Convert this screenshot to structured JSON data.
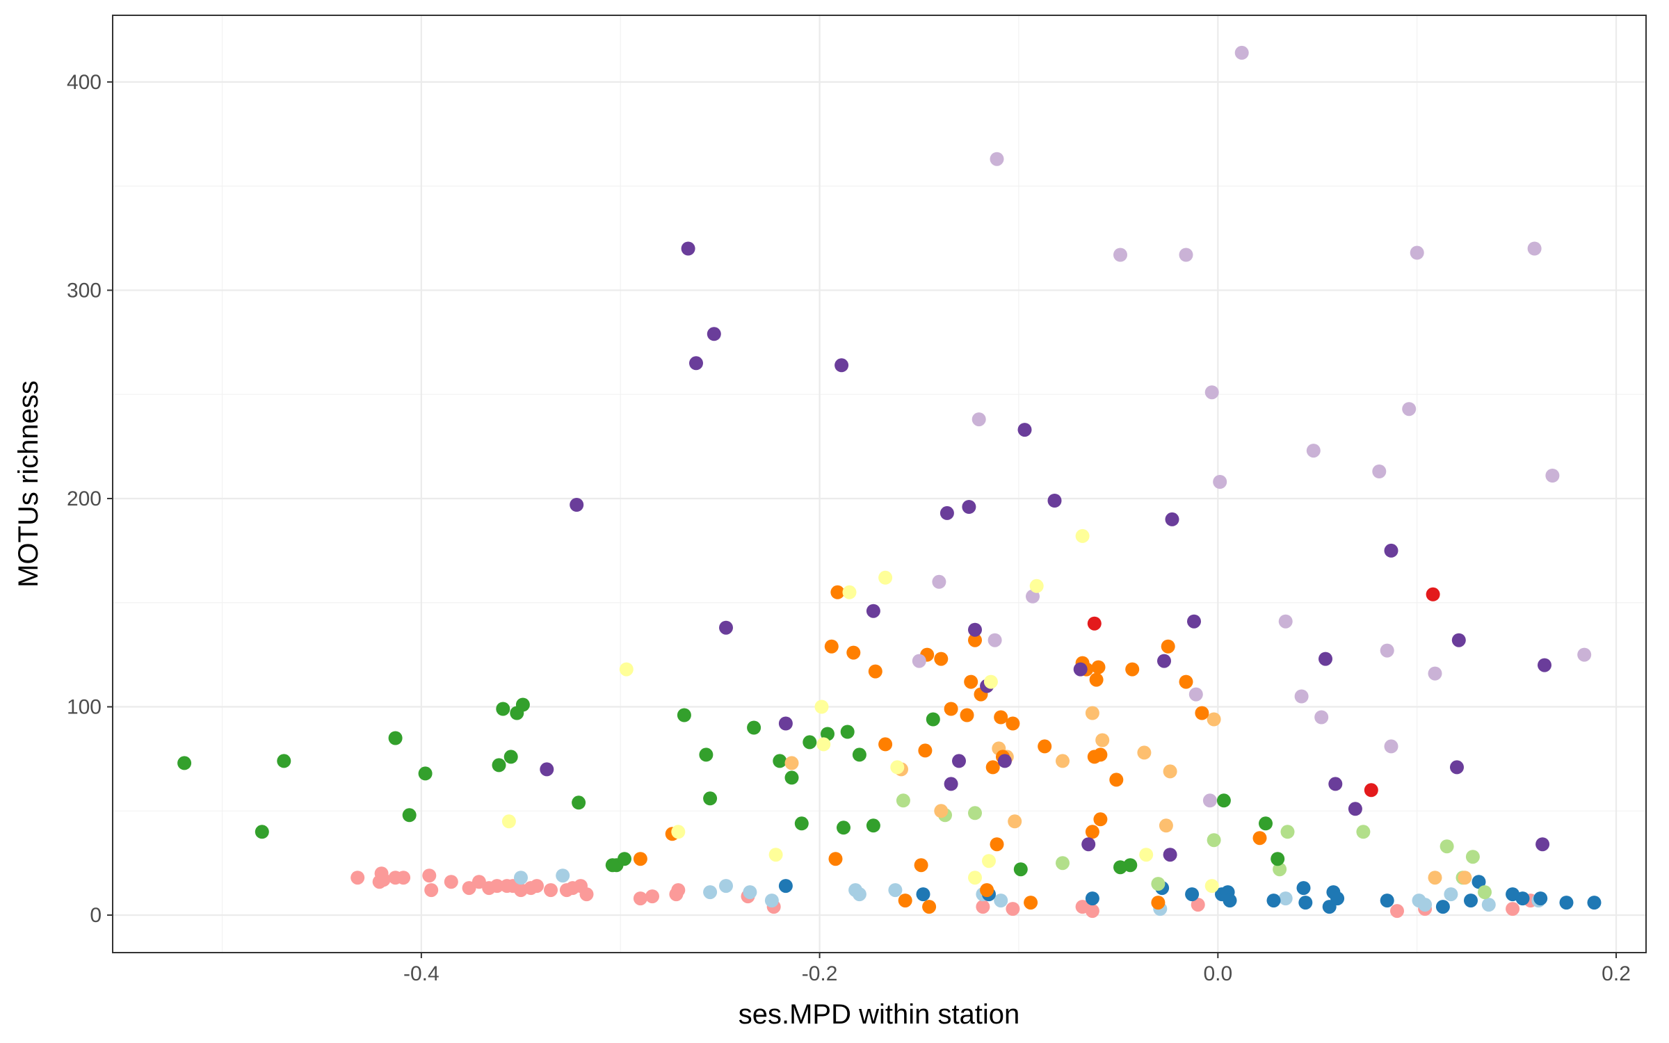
{
  "chart_data": {
    "type": "scatter",
    "title": "",
    "xlabel": "ses.MPD within station",
    "ylabel": "MOTUs richness",
    "xlim": [
      -0.555,
      0.215
    ],
    "ylim": [
      -18,
      432
    ],
    "x_ticks": [
      -0.4,
      -0.2,
      0.0,
      0.2
    ],
    "x_tick_labels": [
      "-0.4",
      "-0.2",
      "0.0",
      "0.2"
    ],
    "y_ticks": [
      0,
      100,
      200,
      300,
      400
    ],
    "y_tick_labels": [
      "0",
      "100",
      "200",
      "300",
      "400"
    ],
    "grid": true,
    "legend": "none",
    "series": [
      {
        "name": "pink",
        "color": "#FB9A99",
        "points": [
          [
            -0.432,
            18
          ],
          [
            -0.421,
            16
          ],
          [
            -0.42,
            20
          ],
          [
            -0.419,
            17
          ],
          [
            -0.413,
            18
          ],
          [
            -0.409,
            18
          ],
          [
            -0.395,
            12
          ],
          [
            -0.396,
            19
          ],
          [
            -0.385,
            16
          ],
          [
            -0.376,
            13
          ],
          [
            -0.371,
            16
          ],
          [
            -0.366,
            13
          ],
          [
            -0.362,
            14
          ],
          [
            -0.357,
            14
          ],
          [
            -0.354,
            14
          ],
          [
            -0.35,
            12
          ],
          [
            -0.345,
            13
          ],
          [
            -0.342,
            14
          ],
          [
            -0.335,
            12
          ],
          [
            -0.327,
            12
          ],
          [
            -0.324,
            13
          ],
          [
            -0.32,
            14
          ],
          [
            -0.317,
            10
          ],
          [
            -0.29,
            8
          ],
          [
            -0.284,
            9
          ],
          [
            -0.272,
            10
          ],
          [
            -0.271,
            12
          ],
          [
            -0.236,
            9
          ],
          [
            -0.223,
            4
          ],
          [
            -0.118,
            4
          ],
          [
            -0.103,
            3
          ],
          [
            -0.068,
            4
          ],
          [
            -0.063,
            2
          ],
          [
            -0.01,
            5
          ],
          [
            0.09,
            2
          ],
          [
            0.104,
            3
          ],
          [
            0.148,
            3
          ],
          [
            0.157,
            7
          ]
        ]
      },
      {
        "name": "light-blue",
        "color": "#A6CEE3",
        "points": [
          [
            -0.35,
            18
          ],
          [
            -0.329,
            19
          ],
          [
            -0.255,
            11
          ],
          [
            -0.247,
            14
          ],
          [
            -0.235,
            11
          ],
          [
            -0.224,
            7
          ],
          [
            -0.182,
            12
          ],
          [
            -0.18,
            10
          ],
          [
            -0.162,
            12
          ],
          [
            -0.118,
            10
          ],
          [
            -0.109,
            7
          ],
          [
            -0.029,
            3
          ],
          [
            0.034,
            8
          ],
          [
            0.101,
            7
          ],
          [
            0.104,
            5
          ],
          [
            0.117,
            10
          ],
          [
            0.136,
            5
          ],
          [
            0.161,
            7
          ]
        ]
      },
      {
        "name": "dark-blue",
        "color": "#1F78B4",
        "points": [
          [
            -0.217,
            14
          ],
          [
            -0.148,
            10
          ],
          [
            -0.115,
            10
          ],
          [
            -0.063,
            8
          ],
          [
            -0.028,
            13
          ],
          [
            -0.013,
            10
          ],
          [
            0.002,
            10
          ],
          [
            0.005,
            11
          ],
          [
            0.006,
            7
          ],
          [
            0.028,
            7
          ],
          [
            0.043,
            13
          ],
          [
            0.044,
            6
          ],
          [
            0.056,
            4
          ],
          [
            0.058,
            11
          ],
          [
            0.06,
            8
          ],
          [
            0.085,
            7
          ],
          [
            0.113,
            4
          ],
          [
            0.127,
            7
          ],
          [
            0.131,
            16
          ],
          [
            0.148,
            10
          ],
          [
            0.153,
            8
          ],
          [
            0.162,
            8
          ],
          [
            0.175,
            6
          ],
          [
            0.189,
            6
          ]
        ]
      },
      {
        "name": "light-green",
        "color": "#B2DF8A",
        "points": [
          [
            -0.158,
            55
          ],
          [
            -0.137,
            48
          ],
          [
            -0.122,
            49
          ],
          [
            -0.078,
            25
          ],
          [
            -0.03,
            15
          ],
          [
            -0.002,
            36
          ],
          [
            0.031,
            22
          ],
          [
            0.035,
            40
          ],
          [
            0.073,
            40
          ],
          [
            0.115,
            33
          ],
          [
            0.123,
            18
          ],
          [
            0.128,
            28
          ],
          [
            0.134,
            11
          ]
        ]
      },
      {
        "name": "green",
        "color": "#33A02C",
        "points": [
          [
            -0.519,
            73
          ],
          [
            -0.48,
            40
          ],
          [
            -0.469,
            74
          ],
          [
            -0.413,
            85
          ],
          [
            -0.406,
            48
          ],
          [
            -0.398,
            68
          ],
          [
            -0.361,
            72
          ],
          [
            -0.359,
            99
          ],
          [
            -0.355,
            76
          ],
          [
            -0.352,
            97
          ],
          [
            -0.349,
            101
          ],
          [
            -0.321,
            54
          ],
          [
            -0.304,
            24
          ],
          [
            -0.302,
            24
          ],
          [
            -0.298,
            27
          ],
          [
            -0.268,
            96
          ],
          [
            -0.257,
            77
          ],
          [
            -0.255,
            56
          ],
          [
            -0.233,
            90
          ],
          [
            -0.22,
            74
          ],
          [
            -0.214,
            66
          ],
          [
            -0.209,
            44
          ],
          [
            -0.205,
            83
          ],
          [
            -0.196,
            87
          ],
          [
            -0.188,
            42
          ],
          [
            -0.186,
            88
          ],
          [
            -0.18,
            77
          ],
          [
            -0.173,
            43
          ],
          [
            -0.143,
            94
          ],
          [
            -0.099,
            22
          ],
          [
            -0.049,
            23
          ],
          [
            -0.044,
            24
          ],
          [
            0.003,
            55
          ],
          [
            0.024,
            44
          ],
          [
            0.03,
            27
          ]
        ]
      },
      {
        "name": "light-orange",
        "color": "#FDBF6F",
        "points": [
          [
            -0.214,
            73
          ],
          [
            -0.159,
            70
          ],
          [
            -0.139,
            50
          ],
          [
            -0.11,
            80
          ],
          [
            -0.106,
            76
          ],
          [
            -0.102,
            45
          ],
          [
            -0.078,
            74
          ],
          [
            -0.063,
            97
          ],
          [
            -0.058,
            84
          ],
          [
            -0.037,
            78
          ],
          [
            -0.026,
            43
          ],
          [
            -0.024,
            69
          ],
          [
            -0.002,
            94
          ],
          [
            0.109,
            18
          ],
          [
            0.124,
            18
          ]
        ]
      },
      {
        "name": "orange",
        "color": "#FF7F00",
        "points": [
          [
            -0.29,
            27
          ],
          [
            -0.274,
            39
          ],
          [
            -0.194,
            129
          ],
          [
            -0.192,
            27
          ],
          [
            -0.191,
            155
          ],
          [
            -0.183,
            126
          ],
          [
            -0.172,
            117
          ],
          [
            -0.167,
            82
          ],
          [
            -0.157,
            7
          ],
          [
            -0.149,
            24
          ],
          [
            -0.147,
            79
          ],
          [
            -0.146,
            125
          ],
          [
            -0.145,
            4
          ],
          [
            -0.139,
            123
          ],
          [
            -0.134,
            99
          ],
          [
            -0.126,
            96
          ],
          [
            -0.124,
            112
          ],
          [
            -0.122,
            132
          ],
          [
            -0.119,
            106
          ],
          [
            -0.116,
            12
          ],
          [
            -0.113,
            71
          ],
          [
            -0.111,
            34
          ],
          [
            -0.109,
            95
          ],
          [
            -0.108,
            76
          ],
          [
            -0.103,
            92
          ],
          [
            -0.094,
            6
          ],
          [
            -0.087,
            81
          ],
          [
            -0.068,
            121
          ],
          [
            -0.066,
            118
          ],
          [
            -0.063,
            40
          ],
          [
            -0.062,
            76
          ],
          [
            -0.061,
            113
          ],
          [
            -0.06,
            119
          ],
          [
            -0.059,
            77
          ],
          [
            -0.059,
            46
          ],
          [
            -0.051,
            65
          ],
          [
            -0.043,
            118
          ],
          [
            -0.03,
            6
          ],
          [
            -0.025,
            129
          ],
          [
            -0.016,
            112
          ],
          [
            -0.008,
            97
          ],
          [
            0.021,
            37
          ]
        ]
      },
      {
        "name": "red",
        "color": "#E31A1C",
        "points": [
          [
            -0.062,
            140
          ],
          [
            0.077,
            60
          ],
          [
            0.108,
            154
          ]
        ]
      },
      {
        "name": "light-purple",
        "color": "#CAB2D6",
        "points": [
          [
            -0.15,
            122
          ],
          [
            -0.14,
            160
          ],
          [
            -0.12,
            238
          ],
          [
            -0.112,
            132
          ],
          [
            -0.111,
            363
          ],
          [
            -0.093,
            153
          ],
          [
            -0.049,
            317
          ],
          [
            -0.016,
            317
          ],
          [
            -0.011,
            106
          ],
          [
            -0.004,
            55
          ],
          [
            -0.003,
            251
          ],
          [
            0.001,
            208
          ],
          [
            0.012,
            414
          ],
          [
            0.034,
            141
          ],
          [
            0.042,
            105
          ],
          [
            0.048,
            223
          ],
          [
            0.052,
            95
          ],
          [
            0.081,
            213
          ],
          [
            0.085,
            127
          ],
          [
            0.087,
            81
          ],
          [
            0.096,
            243
          ],
          [
            0.1,
            318
          ],
          [
            0.109,
            116
          ],
          [
            0.159,
            320
          ],
          [
            0.168,
            211
          ],
          [
            0.184,
            125
          ]
        ]
      },
      {
        "name": "purple",
        "color": "#6A3D9A",
        "points": [
          [
            -0.337,
            70
          ],
          [
            -0.322,
            197
          ],
          [
            -0.266,
            320
          ],
          [
            -0.262,
            265
          ],
          [
            -0.253,
            279
          ],
          [
            -0.247,
            138
          ],
          [
            -0.217,
            92
          ],
          [
            -0.189,
            264
          ],
          [
            -0.173,
            146
          ],
          [
            -0.136,
            193
          ],
          [
            -0.134,
            63
          ],
          [
            -0.13,
            74
          ],
          [
            -0.125,
            196
          ],
          [
            -0.122,
            137
          ],
          [
            -0.116,
            110
          ],
          [
            -0.107,
            74
          ],
          [
            -0.097,
            233
          ],
          [
            -0.082,
            199
          ],
          [
            -0.069,
            118
          ],
          [
            -0.065,
            34
          ],
          [
            -0.027,
            122
          ],
          [
            -0.024,
            29
          ],
          [
            -0.023,
            190
          ],
          [
            -0.012,
            141
          ],
          [
            0.054,
            123
          ],
          [
            0.059,
            63
          ],
          [
            0.069,
            51
          ],
          [
            0.087,
            175
          ],
          [
            0.12,
            71
          ],
          [
            0.121,
            132
          ],
          [
            0.163,
            34
          ],
          [
            0.164,
            120
          ]
        ]
      },
      {
        "name": "yellow",
        "color": "#FFFF99",
        "points": [
          [
            -0.356,
            45
          ],
          [
            -0.297,
            118
          ],
          [
            -0.271,
            40
          ],
          [
            -0.222,
            29
          ],
          [
            -0.199,
            100
          ],
          [
            -0.198,
            82
          ],
          [
            -0.185,
            155
          ],
          [
            -0.167,
            162
          ],
          [
            -0.161,
            71
          ],
          [
            -0.122,
            18
          ],
          [
            -0.115,
            26
          ],
          [
            -0.114,
            112
          ],
          [
            -0.091,
            158
          ],
          [
            -0.068,
            182
          ],
          [
            -0.036,
            29
          ],
          [
            -0.003,
            14
          ]
        ]
      }
    ]
  }
}
